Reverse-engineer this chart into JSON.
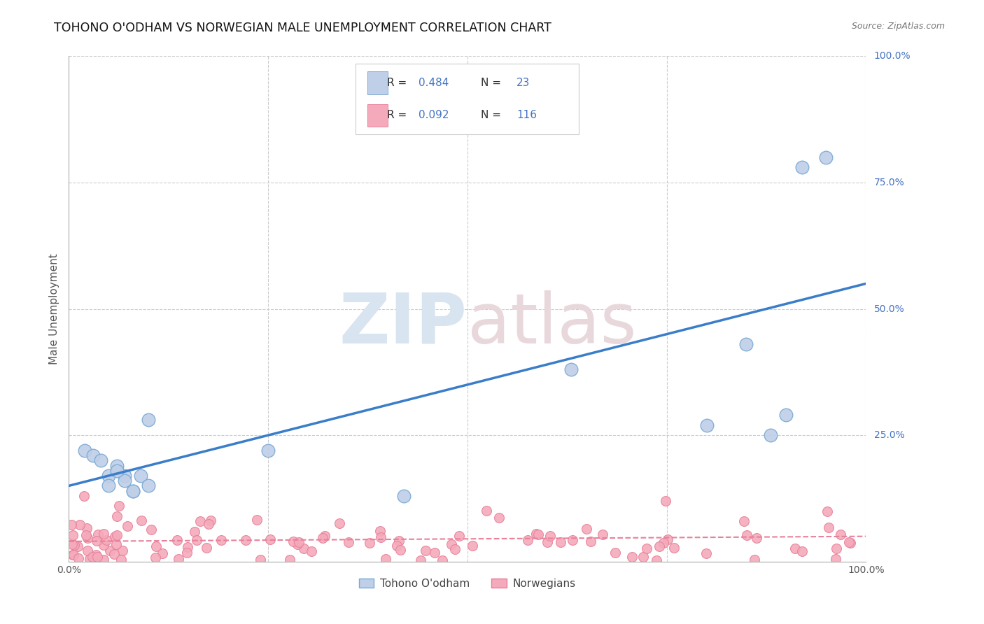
{
  "title": "TOHONO O'ODHAM VS NORWEGIAN MALE UNEMPLOYMENT CORRELATION CHART",
  "source": "Source: ZipAtlas.com",
  "ylabel": "Male Unemployment",
  "xlim": [
    0,
    100
  ],
  "ylim": [
    0,
    100
  ],
  "tohono_R": 0.484,
  "tohono_N": 23,
  "norwegian_R": 0.092,
  "norwegian_N": 116,
  "tohono_color": "#BFCFE8",
  "tohono_edge_color": "#7BAAD4",
  "norwegian_color": "#F4AABB",
  "norwegian_edge_color": "#E8809A",
  "tohono_line_color": "#3A7DC9",
  "norwegian_line_color": "#E8809A",
  "legend_label_1": "Tohono O'odham",
  "legend_label_2": "Norwegians",
  "blue_text_color": "#4472C4",
  "dark_text_color": "#333333",
  "watermark_color": "#E8ECF5",
  "background_color": "#FFFFFF",
  "grid_color": "#CCCCCC",
  "tohono_x": [
    2,
    3,
    4,
    5,
    5,
    6,
    7,
    7,
    8,
    9,
    10,
    25,
    42,
    63,
    80,
    85,
    88,
    90,
    92,
    95,
    6,
    8,
    10
  ],
  "tohono_y": [
    22,
    21,
    20,
    17,
    15,
    19,
    17,
    16,
    14,
    17,
    15,
    22,
    13,
    38,
    27,
    43,
    25,
    29,
    78,
    80,
    18,
    14,
    28
  ],
  "tohono_line_x0": 0,
  "tohono_line_y0": 15,
  "tohono_line_x1": 100,
  "tohono_line_y1": 55,
  "norwegian_line_x0": 0,
  "norwegian_line_y0": 4,
  "norwegian_line_x1": 100,
  "norwegian_line_y1": 5
}
